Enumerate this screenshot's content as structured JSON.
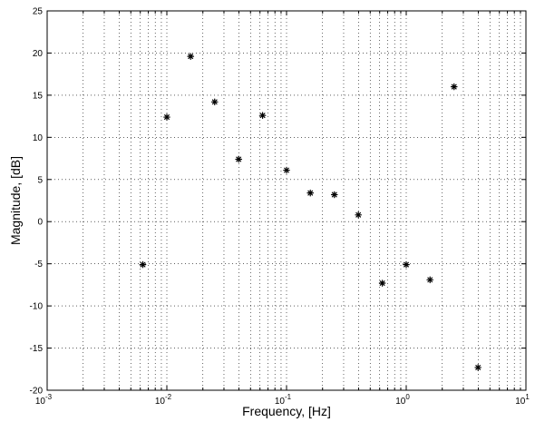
{
  "chart_data": {
    "type": "scatter",
    "title": "",
    "xlabel": "Frequency, [Hz]",
    "ylabel": "Magnitude, [dB]",
    "xscale": "log",
    "xlim": [
      0.001,
      10
    ],
    "ylim": [
      -20,
      25
    ],
    "grid": true,
    "marker": "asterisk",
    "marker_color": "#000000",
    "x_ticks": [
      {
        "base": "10",
        "exp": "-3"
      },
      {
        "base": "10",
        "exp": "-2"
      },
      {
        "base": "10",
        "exp": "-1"
      },
      {
        "base": "10",
        "exp": "0"
      },
      {
        "base": "10",
        "exp": "1"
      }
    ],
    "y_ticks": [
      "25",
      "20",
      "15",
      "10",
      "5",
      "0",
      "-5",
      "-10",
      "-15",
      "-20"
    ],
    "y_tick_values": [
      25,
      20,
      15,
      10,
      5,
      0,
      -5,
      -10,
      -15,
      -20
    ],
    "points": [
      {
        "x": 0.0063,
        "y": -5.1
      },
      {
        "x": 0.01,
        "y": 12.4
      },
      {
        "x": 0.0158,
        "y": 19.6
      },
      {
        "x": 0.0251,
        "y": 14.2
      },
      {
        "x": 0.0398,
        "y": 7.4
      },
      {
        "x": 0.0631,
        "y": 12.6
      },
      {
        "x": 0.1,
        "y": 6.1
      },
      {
        "x": 0.158,
        "y": 3.4
      },
      {
        "x": 0.251,
        "y": 3.2
      },
      {
        "x": 0.398,
        "y": 0.8
      },
      {
        "x": 0.631,
        "y": -7.3
      },
      {
        "x": 1.0,
        "y": -5.1
      },
      {
        "x": 1.58,
        "y": -6.9
      },
      {
        "x": 2.51,
        "y": 16.0
      },
      {
        "x": 3.98,
        "y": -17.3
      }
    ]
  }
}
